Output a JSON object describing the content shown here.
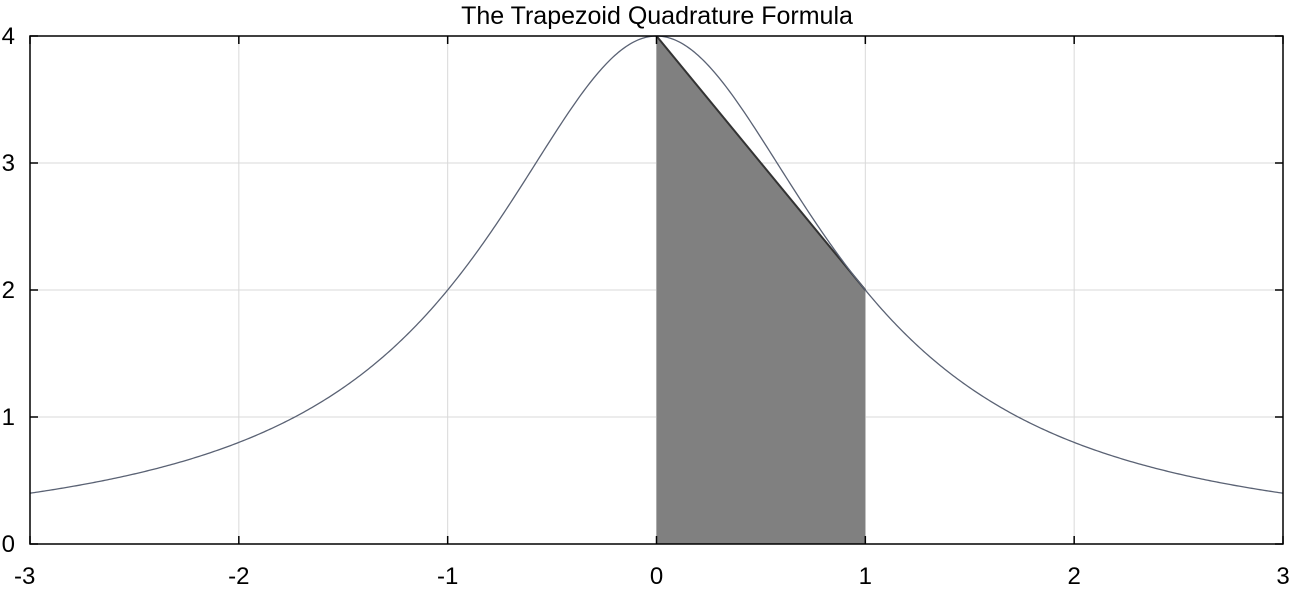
{
  "chart_data": {
    "type": "area",
    "title": "The Trapezoid Quadrature Formula",
    "xlabel": "",
    "ylabel": "",
    "xlim": [
      -3,
      3
    ],
    "ylim": [
      0,
      4
    ],
    "x_ticks": [
      -3,
      -2,
      -1,
      0,
      1,
      2,
      3
    ],
    "y_ticks": [
      0,
      1,
      2,
      3,
      4
    ],
    "x_tick_labels": [
      "-3",
      "-2",
      "-1",
      "0",
      "1",
      "2",
      "3"
    ],
    "y_tick_labels": [
      "0",
      "1",
      "2",
      "3",
      "4"
    ],
    "grid": true,
    "legend": "none",
    "series": [
      {
        "kind": "line",
        "function": "4/(1+x^2)",
        "x": [
          -3,
          -2.5,
          -2,
          -1.5,
          -1,
          -0.5,
          0,
          0.5,
          1,
          1.5,
          2,
          2.5,
          3
        ],
        "y": [
          0.4,
          0.552,
          0.8,
          1.231,
          2,
          3.2,
          4,
          3.2,
          2,
          1.231,
          0.8,
          0.552,
          0.4
        ],
        "color": "#5a6274"
      },
      {
        "kind": "filled_trapezoid",
        "x": [
          0,
          1
        ],
        "y": [
          4,
          2
        ],
        "color": "#808080"
      }
    ]
  }
}
